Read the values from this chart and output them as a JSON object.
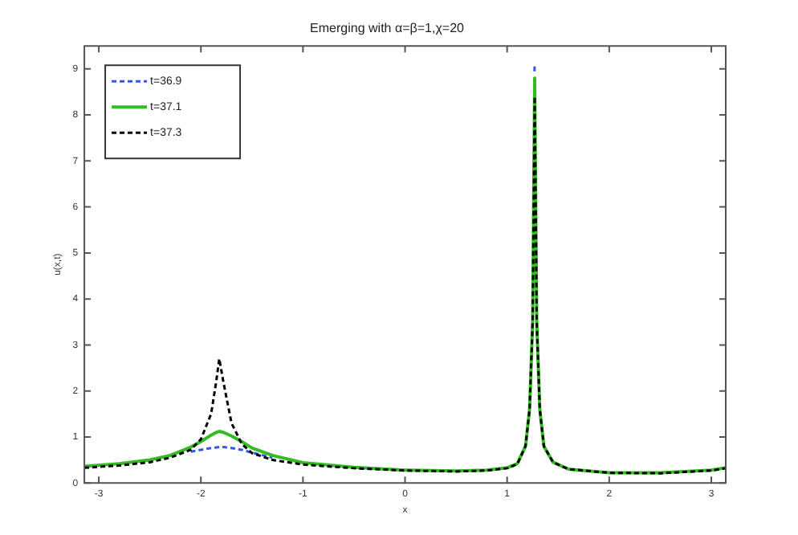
{
  "chart_data": {
    "type": "line",
    "title": "Emerging with α=β=1,χ=20",
    "xlabel": "x",
    "ylabel": "u(x,t)",
    "x": [
      -3.1416,
      -2.8,
      -2.5,
      -2.3,
      -2.1,
      -2.0,
      -1.9,
      -1.85,
      -1.82,
      -1.78,
      -1.7,
      -1.6,
      -1.5,
      -1.3,
      -1.0,
      -0.5,
      0,
      0.5,
      0.8,
      1.0,
      1.1,
      1.18,
      1.22,
      1.25,
      1.27,
      1.29,
      1.32,
      1.36,
      1.45,
      1.6,
      2.0,
      2.5,
      3.0,
      3.1416
    ],
    "series": [
      {
        "name": "t=36.9",
        "color": "#3355ee",
        "line_style": "dashed",
        "x": [
          -2.1,
          -2.0,
          -1.9,
          -1.85,
          -1.82,
          -1.78,
          -1.7,
          -1.6,
          -1.5,
          -1.3,
          0,
          1.268,
          1.27
        ],
        "values": [
          0.68,
          0.72,
          0.76,
          0.77,
          0.78,
          0.78,
          0.76,
          0.72,
          0.66,
          0.55,
          null,
          8.95,
          9.1
        ]
      },
      {
        "name": "t=37.1",
        "color": "#33bb22",
        "line_style": "solid",
        "values": [
          0.36,
          0.42,
          0.5,
          0.6,
          0.78,
          0.9,
          1.04,
          1.1,
          1.12,
          1.1,
          1.02,
          0.9,
          0.76,
          0.6,
          0.44,
          0.34,
          0.28,
          0.26,
          0.28,
          0.33,
          0.42,
          0.8,
          1.6,
          3.5,
          8.8,
          3.5,
          1.6,
          0.8,
          0.45,
          0.3,
          0.22,
          0.22,
          0.28,
          0.33
        ]
      },
      {
        "name": "t=37.3",
        "color": "#000000",
        "line_style": "dashed",
        "values": [
          0.33,
          0.38,
          0.45,
          0.55,
          0.72,
          0.95,
          1.5,
          2.2,
          2.7,
          2.2,
          1.3,
          0.85,
          0.65,
          0.5,
          0.4,
          0.32,
          0.27,
          0.25,
          0.27,
          0.32,
          0.41,
          0.8,
          1.6,
          3.5,
          8.4,
          3.5,
          1.6,
          0.8,
          0.45,
          0.3,
          0.22,
          0.21,
          0.27,
          0.32
        ]
      }
    ],
    "xlim": [
      -3.1416,
      3.1416
    ],
    "xticks": [
      -3,
      -2,
      -1,
      0,
      1,
      2,
      3
    ],
    "ylim": [
      0,
      9.5
    ],
    "yticks": [
      0,
      1,
      2,
      3,
      4,
      5,
      6,
      7,
      8,
      9
    ],
    "grid": false,
    "legend": "top left",
    "marker": "none"
  }
}
